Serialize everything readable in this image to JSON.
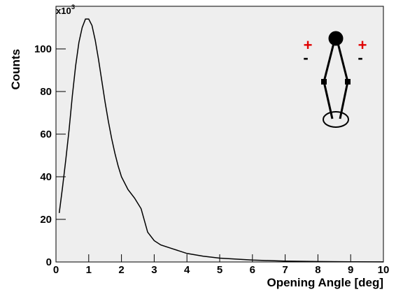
{
  "chart_data": {
    "type": "line",
    "x_label": "Opening Angle  [deg]",
    "y_label": "Counts",
    "y_scale_base": "x10",
    "y_scale_exponent": "3",
    "annotations": [
      "+",
      "-",
      "+",
      "-"
    ],
    "x": [
      0.1,
      0.2,
      0.3,
      0.4,
      0.5,
      0.6,
      0.7,
      0.8,
      0.9,
      1.0,
      1.1,
      1.2,
      1.3,
      1.4,
      1.5,
      1.6,
      1.7,
      1.8,
      1.9,
      2.0,
      2.2,
      2.4,
      2.6,
      2.8,
      3.0,
      3.2,
      3.5,
      4.0,
      4.5,
      5.0,
      6.0,
      7.0,
      8.0,
      9.0,
      10.0
    ],
    "series": [
      {
        "color": "#000000",
        "values": [
          23,
          35,
          48,
          62,
          78,
          92,
          103,
          110,
          114,
          114,
          111,
          104,
          95,
          85,
          75,
          66,
          58,
          51,
          45,
          40,
          34,
          30,
          25,
          14,
          10,
          8,
          6.5,
          4,
          2.7,
          1.8,
          0.9,
          0.4,
          0.2,
          0.1,
          0.05
        ]
      }
    ],
    "xlim": [
      0,
      10
    ],
    "ylim": [
      0,
      120
    ],
    "xticks": [
      0,
      1,
      2,
      3,
      4,
      5,
      6,
      7,
      8,
      9,
      10
    ],
    "yticks": [
      0,
      20,
      40,
      60,
      80,
      100
    ],
    "plot_background": "#eeeeee"
  }
}
